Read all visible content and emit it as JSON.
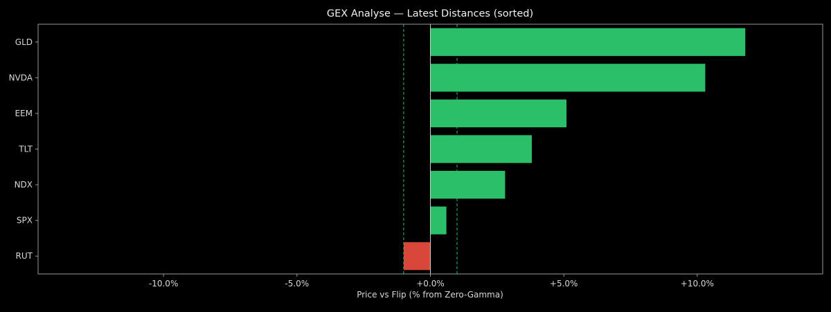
{
  "chart_data": {
    "type": "bar",
    "orientation": "horizontal",
    "title": "GEX Analyse — Latest Distances (sorted)",
    "xlabel": "Price vs Flip (% from Zero-Gamma)",
    "ylabel": "",
    "xlim": [
      -14.7,
      14.7
    ],
    "xticks": [
      -10,
      -5,
      0,
      5,
      10
    ],
    "xtick_labels": [
      "-10.0%",
      "-5.0%",
      "+0.0%",
      "+5.0%",
      "+10.0%"
    ],
    "categories": [
      "GLD",
      "NVDA",
      "EEM",
      "TLT",
      "NDX",
      "SPX",
      "RUT"
    ],
    "values": [
      11.8,
      10.3,
      5.1,
      3.8,
      2.8,
      0.6,
      -1.0
    ],
    "reference_lines": [
      -1.0,
      1.0
    ],
    "grid": false,
    "colors": {
      "background": "#000000",
      "positive": "#2bbf6a",
      "negative": "#d9463a",
      "reference_line": "#2bbf6a",
      "zero_line": "#cccccc",
      "frame": "#9a9a9a",
      "text": "#d8d8d8"
    }
  }
}
